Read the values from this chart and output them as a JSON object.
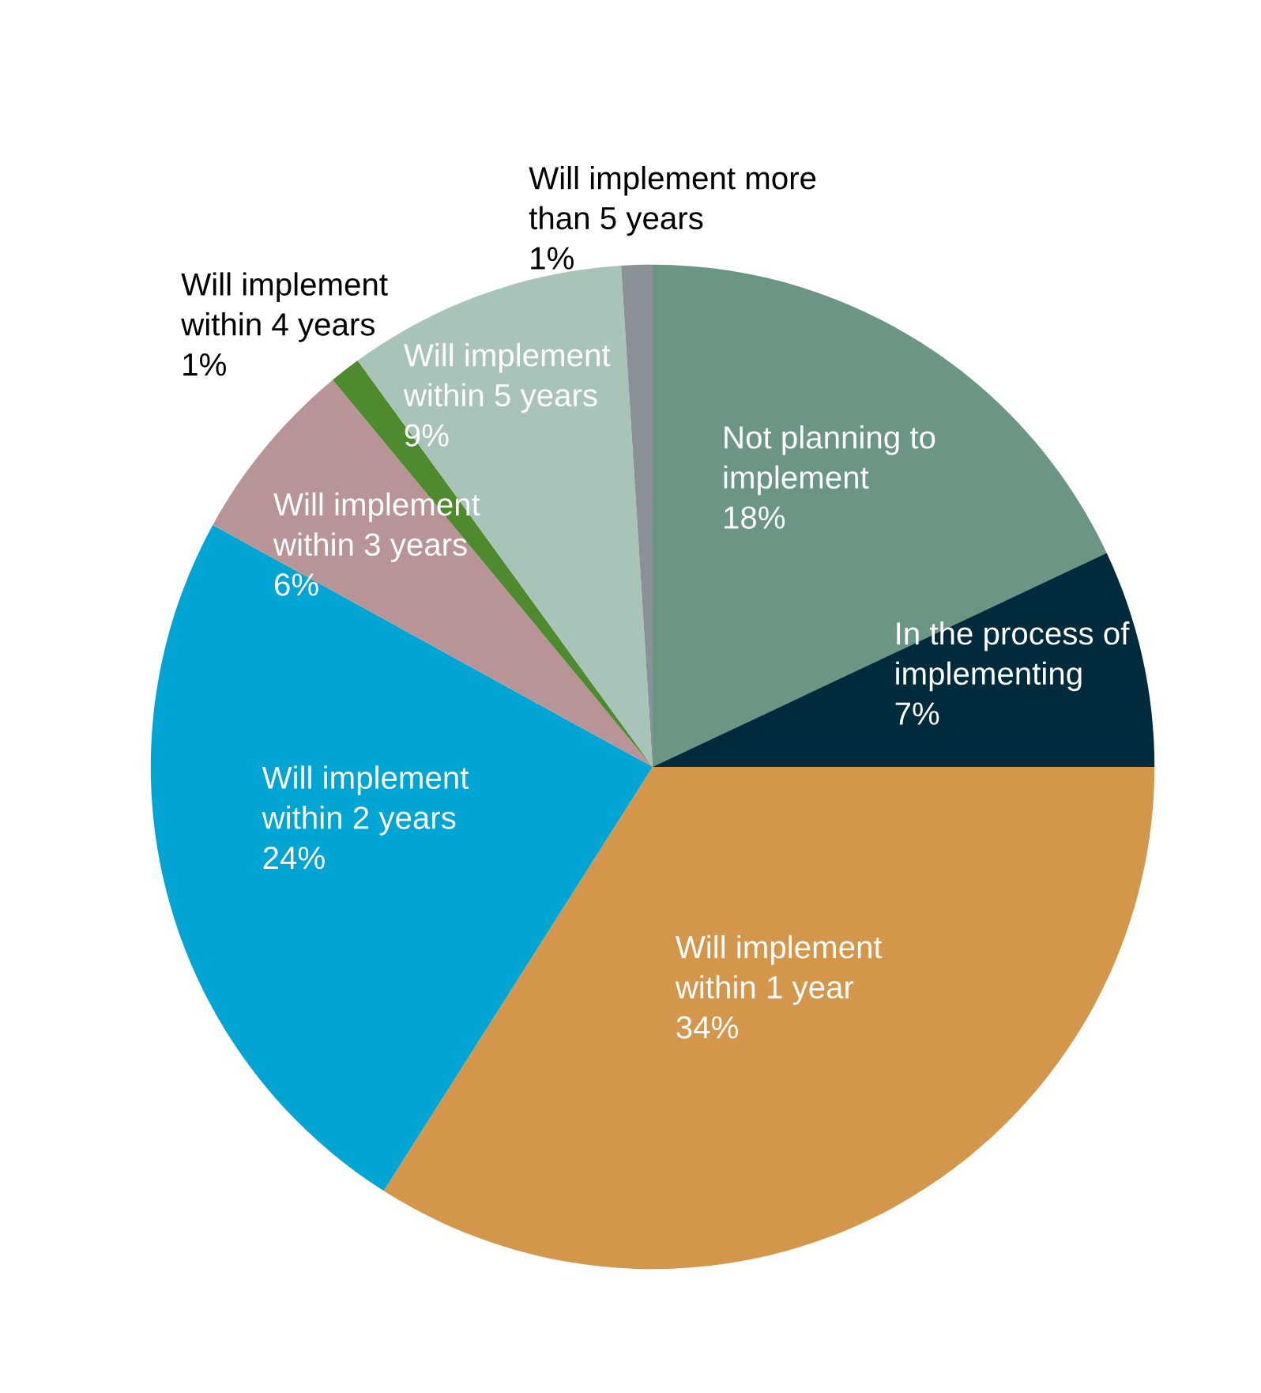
{
  "chart_data": {
    "type": "pie",
    "categories": [
      "Not planning to implement",
      "In the process of implementing",
      "Will implement within 1 year",
      "Will implement within 2 years",
      "Will implement within 3 years",
      "Will implement within 4 years",
      "Will implement within 5 years",
      "Will implement more than 5 years"
    ],
    "values": [
      18,
      7,
      34,
      24,
      6,
      1,
      9,
      1
    ],
    "value_labels": [
      "18%",
      "7%",
      "34%",
      "24%",
      "6%",
      "1%",
      "9%",
      "1%"
    ],
    "colors": [
      "#6a9683",
      "#002b3c",
      "#d4964a",
      "#00a5d3",
      "#b99496",
      "#4e8a2e",
      "#a8c3b8",
      "#8a9196"
    ]
  }
}
